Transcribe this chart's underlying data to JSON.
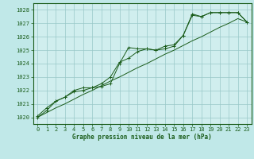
{
  "title": "Graphe pression niveau de la mer (hPa)",
  "background_color": "#c0e8e8",
  "plot_bg_color": "#d0eeee",
  "grid_color": "#98c8c8",
  "line_color": "#1a5c1a",
  "xlim": [
    -0.5,
    23.5
  ],
  "ylim": [
    1019.5,
    1028.5
  ],
  "yticks": [
    1020,
    1021,
    1022,
    1023,
    1024,
    1025,
    1026,
    1027,
    1028
  ],
  "xticks": [
    0,
    1,
    2,
    3,
    4,
    5,
    6,
    7,
    8,
    9,
    10,
    11,
    12,
    13,
    14,
    15,
    16,
    17,
    18,
    19,
    20,
    21,
    22,
    23
  ],
  "series1": [
    1020.1,
    1020.7,
    1021.2,
    1021.5,
    1021.9,
    1022.0,
    1022.2,
    1022.3,
    1022.5,
    1024.0,
    1025.2,
    1025.1,
    1025.1,
    1025.0,
    1025.3,
    1025.4,
    1026.1,
    1027.6,
    1027.5,
    1027.8,
    1027.8,
    1027.8,
    1027.8,
    1027.1
  ],
  "series2": [
    1020.0,
    1020.5,
    1021.2,
    1021.5,
    1022.0,
    1022.2,
    1022.2,
    1022.5,
    1023.0,
    1024.1,
    1024.4,
    1024.9,
    1025.1,
    1025.0,
    1025.1,
    1025.3,
    1026.1,
    1027.7,
    1027.5,
    1027.8,
    1027.8,
    1027.8,
    1027.8,
    1027.1
  ],
  "seriesdirect": [
    1020.0,
    1020.35,
    1020.7,
    1021.0,
    1021.35,
    1021.7,
    1022.0,
    1022.35,
    1022.7,
    1023.0,
    1023.35,
    1023.7,
    1024.0,
    1024.35,
    1024.7,
    1025.0,
    1025.35,
    1025.7,
    1026.0,
    1026.35,
    1026.7,
    1027.0,
    1027.35,
    1027.1
  ]
}
